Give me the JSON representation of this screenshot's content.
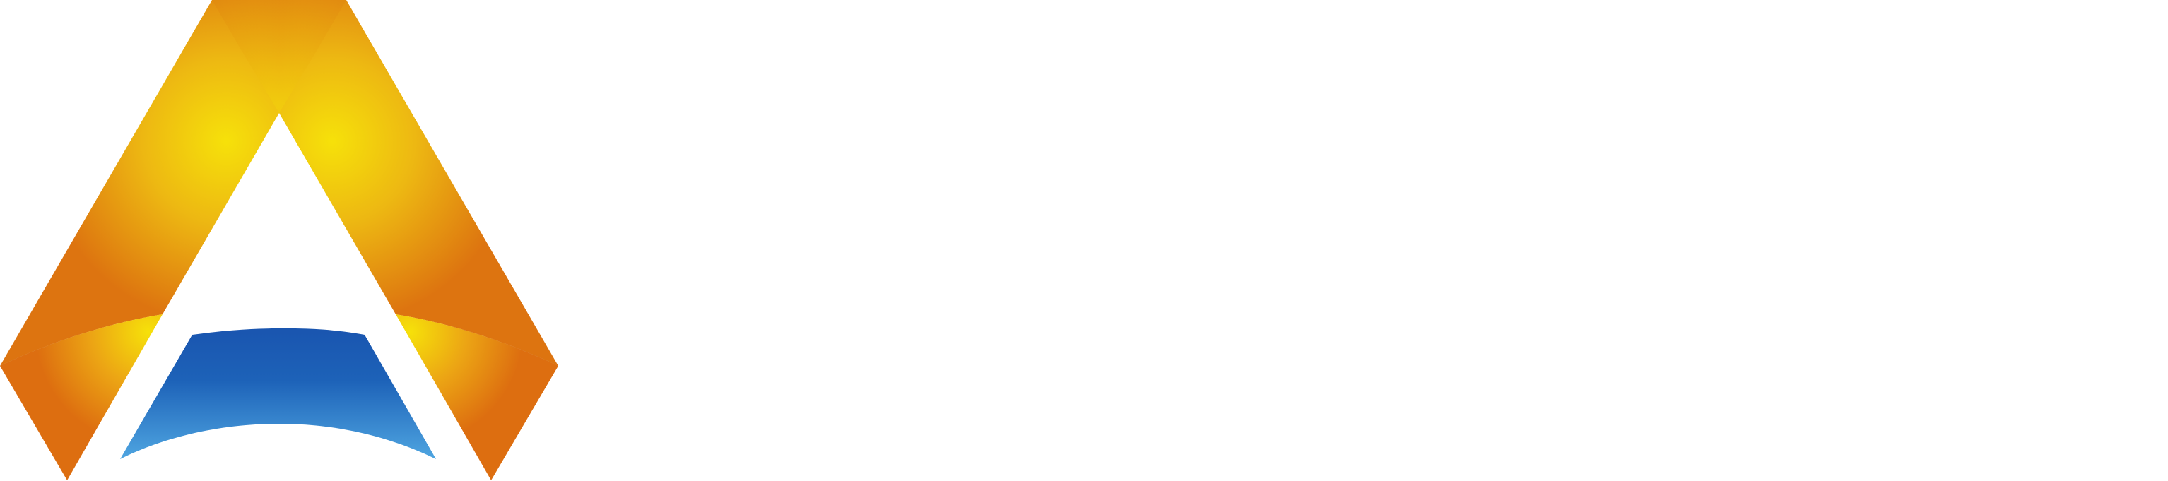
{
  "logo": {
    "name": "A-shaped emblem",
    "icon": "letter-a-logo-icon",
    "colors": {
      "orange_dark": "#D76A0E",
      "orange": "#E8880F",
      "yellow": "#F6E10A",
      "shadow_brown": "#B8600A",
      "blue_dark": "#1A56B0",
      "blue_light": "#4BA3E0",
      "background": "#FFFFFF"
    }
  }
}
